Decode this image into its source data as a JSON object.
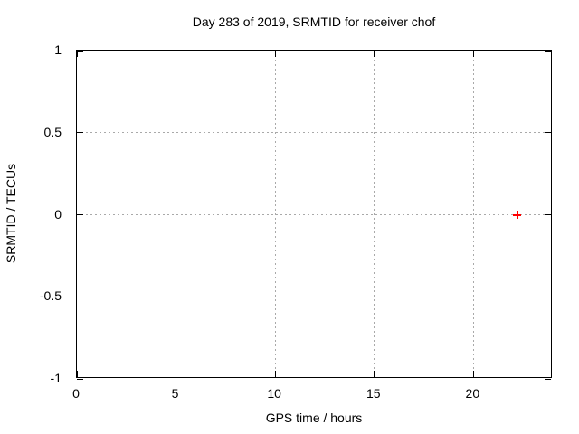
{
  "window": {
    "background": "#ffffff"
  },
  "chart_data": {
    "type": "scatter",
    "title": "Day 283 of 2019, SRMTID for receiver chof",
    "xlabel": "GPS time / hours",
    "ylabel": "SRMTID / TECUs",
    "xlim": [
      0,
      24
    ],
    "ylim": [
      -1,
      1
    ],
    "x_ticks": [
      {
        "v": 0,
        "label": "0"
      },
      {
        "v": 5,
        "label": "5"
      },
      {
        "v": 10,
        "label": "10"
      },
      {
        "v": 15,
        "label": "15"
      },
      {
        "v": 20,
        "label": "20"
      }
    ],
    "y_ticks": [
      {
        "v": 1,
        "label": "1"
      },
      {
        "v": 0.5,
        "label": "0.5"
      },
      {
        "v": 0,
        "label": "0"
      },
      {
        "v": -0.5,
        "label": "-0.5"
      },
      {
        "v": -1,
        "label": "-1"
      }
    ],
    "grid": true,
    "legend": "none",
    "colors": {
      "axis": "#000000",
      "grid": "#a9a9a9",
      "text": "#000000",
      "marker": "#ff0000"
    },
    "series": [
      {
        "marker": "plus",
        "color": "#ff0000",
        "points": [
          {
            "x": 22.2,
            "y": 0
          }
        ]
      }
    ]
  }
}
